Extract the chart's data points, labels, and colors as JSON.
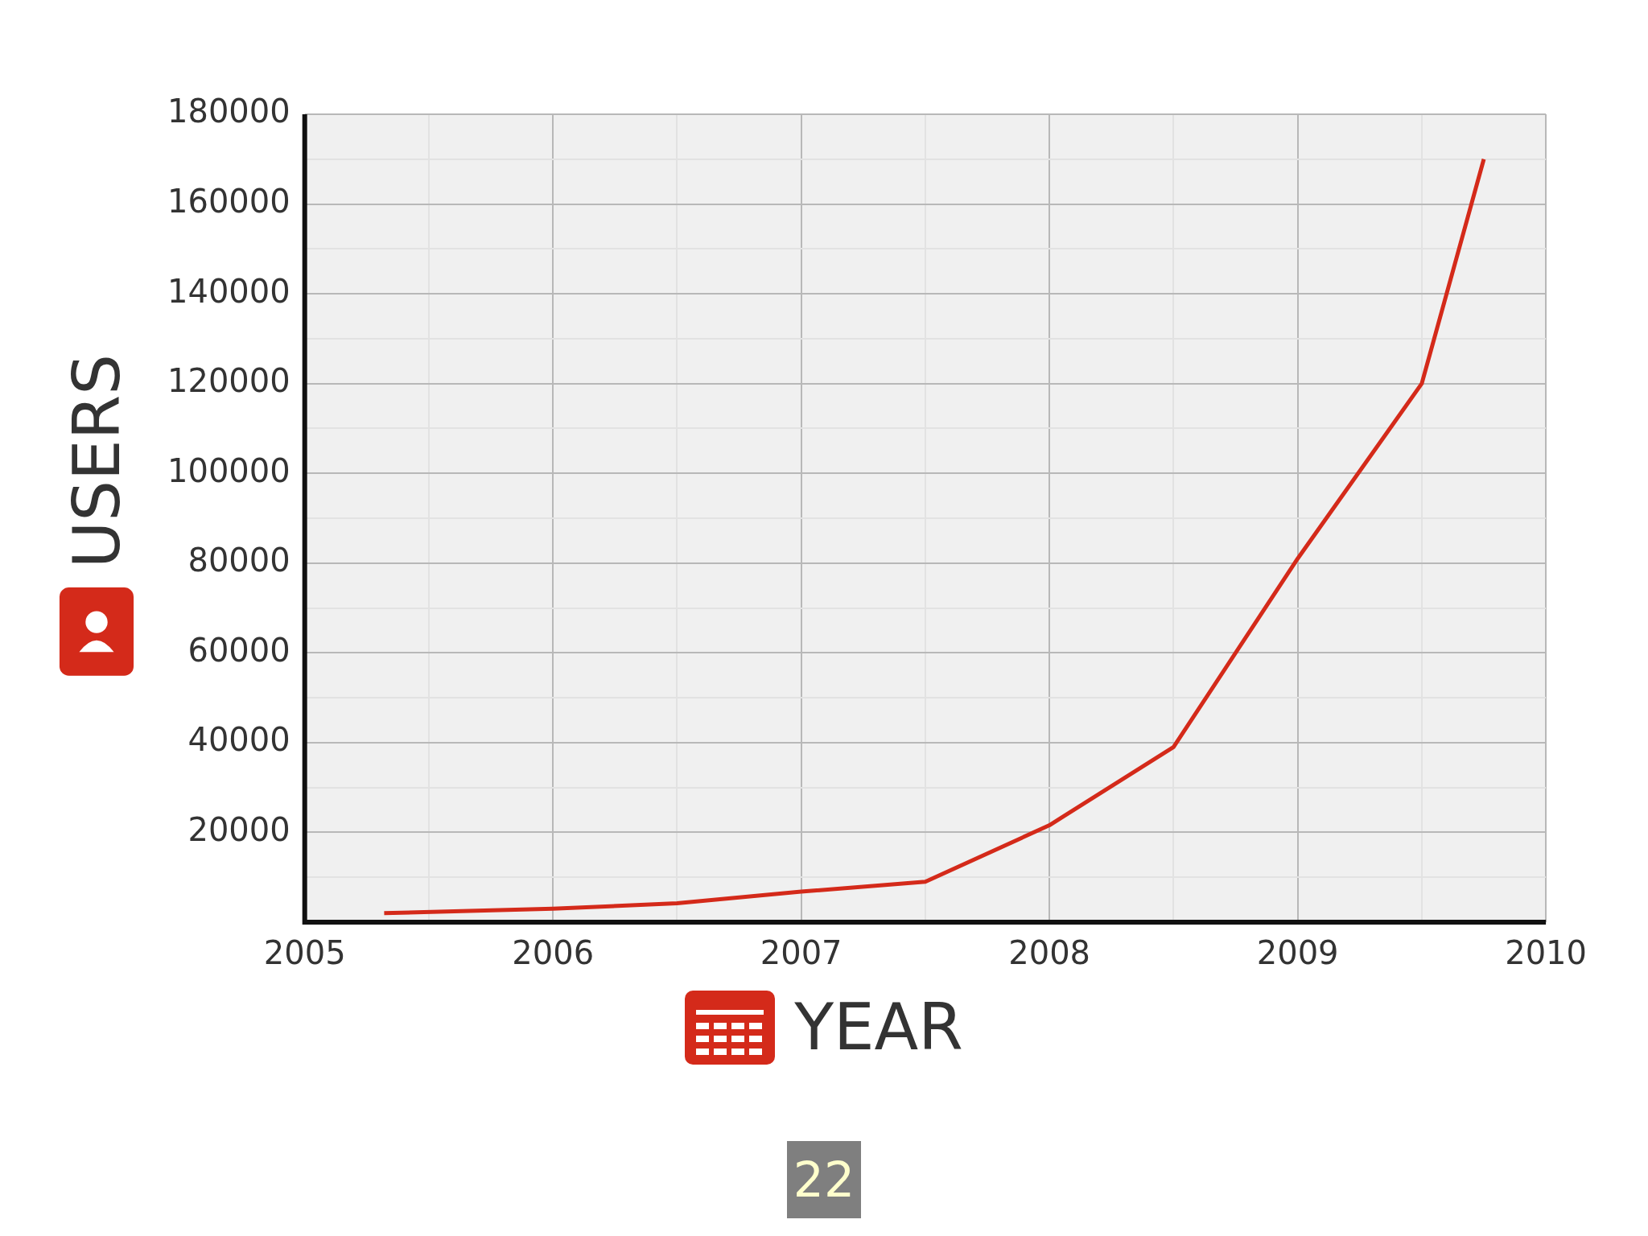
{
  "chart_data": {
    "type": "line",
    "xlabel": "YEAR",
    "ylabel": "USERS",
    "annotations": [
      "22"
    ],
    "x": [
      2005.32,
      2006,
      2006.5,
      2007,
      2007.5,
      2008,
      2008.5,
      2009,
      2009.5,
      2009.75
    ],
    "series": [
      {
        "color": "#d42a1a",
        "values": [
          2000,
          3000,
          4200,
          6800,
          9000,
          21600,
          39000,
          81000,
          120000,
          170000
        ]
      }
    ],
    "xlim": [
      2005,
      2010
    ],
    "xticks": [
      2005,
      {
        "value": 2005.5,
        "label": null
      },
      2006,
      {
        "value": 2006.5,
        "label": null
      },
      2007,
      {
        "value": 2007.5,
        "label": null
      },
      2008,
      {
        "value": 2008.5,
        "label": null
      },
      2009,
      {
        "value": 2009.5,
        "label": null
      },
      2010
    ],
    "ylim": [
      0,
      180000
    ],
    "yticks": [
      {
        "value": 0,
        "label": null
      },
      {
        "value": 10000,
        "label": null
      },
      20000,
      {
        "value": 30000,
        "label": null
      },
      40000,
      {
        "value": 50000,
        "label": null
      },
      60000,
      {
        "value": 70000,
        "label": null
      },
      80000,
      {
        "value": 90000,
        "label": null
      },
      100000,
      {
        "value": 110000,
        "label": null
      },
      120000,
      {
        "value": 130000,
        "label": null
      },
      140000,
      {
        "value": 150000,
        "label": null
      },
      160000,
      {
        "value": 170000,
        "label": null
      },
      180000
    ],
    "grid": true,
    "legend": false,
    "marker": "none",
    "line_style": "solid"
  }
}
